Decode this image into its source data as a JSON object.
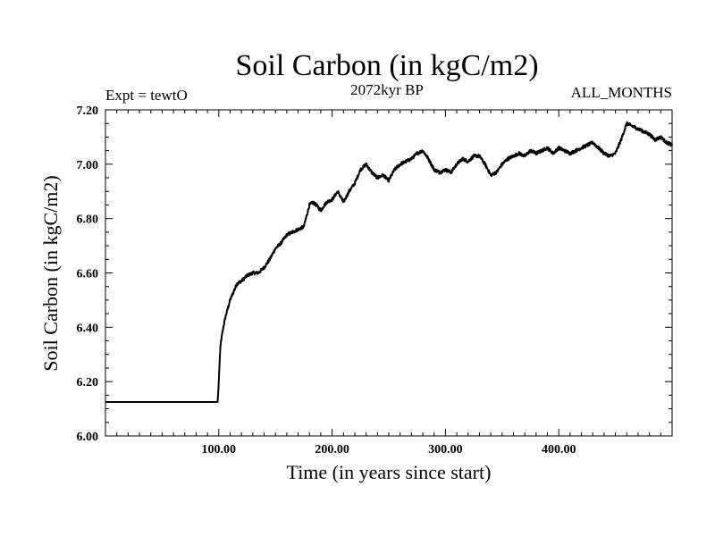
{
  "chart_data": {
    "type": "line",
    "title": "Soil Carbon (in kgC/m2)",
    "subtitle_left": "Expt = tewtO",
    "subtitle_center": "2072kyr BP",
    "subtitle_right": "ALL_MONTHS",
    "xlabel": "Time (in years since start)",
    "ylabel": "Soil Carbon (in kgC/m2)",
    "xlim": [
      0,
      500
    ],
    "ylim": [
      6.0,
      7.2
    ],
    "x_ticks": [
      100,
      200,
      300,
      400
    ],
    "x_tick_labels": [
      "100.00",
      "200.00",
      "300.00",
      "400.00"
    ],
    "y_ticks": [
      6.0,
      6.2,
      6.4,
      6.6,
      6.8,
      7.0,
      7.2
    ],
    "y_tick_labels": [
      "6.00",
      "6.20",
      "6.40",
      "6.60",
      "6.80",
      "7.00",
      "7.20"
    ],
    "line_color": "#000000",
    "series": [
      {
        "name": "Soil Carbon",
        "x": [
          0,
          99,
          100,
          101,
          102,
          104,
          106,
          108,
          110,
          113,
          116,
          120,
          125,
          130,
          135,
          140,
          145,
          150,
          155,
          160,
          165,
          170,
          175,
          180,
          183,
          186,
          190,
          195,
          200,
          205,
          210,
          215,
          220,
          225,
          230,
          235,
          240,
          245,
          250,
          255,
          260,
          265,
          270,
          275,
          280,
          285,
          290,
          295,
          300,
          305,
          310,
          315,
          320,
          325,
          330,
          335,
          340,
          345,
          350,
          355,
          360,
          365,
          370,
          375,
          380,
          385,
          390,
          395,
          400,
          405,
          410,
          415,
          420,
          425,
          430,
          435,
          440,
          445,
          450,
          455,
          460,
          465,
          470,
          475,
          480,
          485,
          490,
          495,
          500
        ],
        "values": [
          6.125,
          6.125,
          6.2,
          6.3,
          6.35,
          6.4,
          6.44,
          6.47,
          6.5,
          6.53,
          6.56,
          6.57,
          6.59,
          6.6,
          6.6,
          6.62,
          6.65,
          6.69,
          6.71,
          6.74,
          6.75,
          6.76,
          6.77,
          6.85,
          6.86,
          6.85,
          6.83,
          6.86,
          6.87,
          6.9,
          6.86,
          6.9,
          6.93,
          6.98,
          7.0,
          6.97,
          6.95,
          6.96,
          6.94,
          6.98,
          7.0,
          7.01,
          7.02,
          7.04,
          7.05,
          7.02,
          6.98,
          6.97,
          6.98,
          6.97,
          7.0,
          7.02,
          7.01,
          7.03,
          7.03,
          7.0,
          6.96,
          6.97,
          7.0,
          7.02,
          7.03,
          7.04,
          7.03,
          7.05,
          7.04,
          7.05,
          7.06,
          7.04,
          7.06,
          7.05,
          7.04,
          7.05,
          7.06,
          7.07,
          7.08,
          7.06,
          7.04,
          7.03,
          7.04,
          7.09,
          7.15,
          7.14,
          7.13,
          7.12,
          7.11,
          7.09,
          7.1,
          7.08,
          7.07
        ]
      }
    ]
  }
}
